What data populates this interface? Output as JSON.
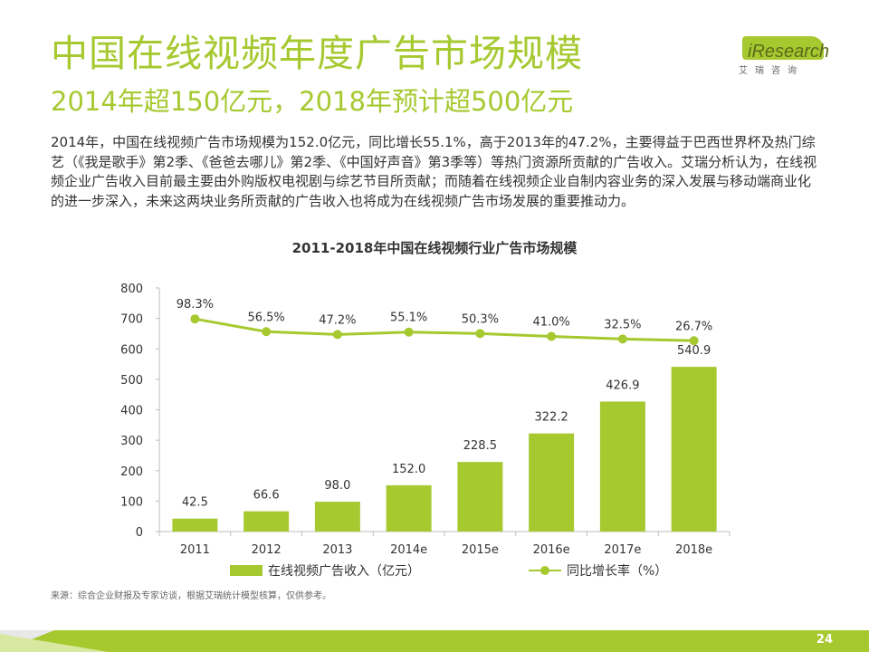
{
  "header": {
    "title": "中国在线视频年度广告市场规模",
    "subtitle": "2014年超150亿元，2018年预计超500亿元"
  },
  "logo": {
    "name": "iResearch",
    "sub": "艾瑞咨询"
  },
  "description": "2014年，中国在线视频广告市场规模为152.0亿元，同比增长55.1%，高于2013年的47.2%，主要得益于巴西世界杯及热门综艺（《我是歌手》第2季、《爸爸去哪儿》第2季、《中国好声音》第3季等）等热门资源所贡献的广告收入。艾瑞分析认为，在线视频企业广告收入目前最主要由外购版权电视剧与综艺节目所贡献；而随着在线视频企业自制内容业务的深入发展与移动端商业化的进一步深入，未来这两块业务所贡献的广告收入也将成为在线视频广告市场发展的重要推动力。",
  "chart_data": {
    "type": "bar",
    "title": "2011-2018年中国在线视频行业广告市场规模",
    "categories": [
      "2011",
      "2012",
      "2013",
      "2014e",
      "2015e",
      "2016e",
      "2017e",
      "2018e"
    ],
    "series": [
      {
        "name": "在线视频广告收入（亿元）",
        "type": "bar",
        "values": [
          42.5,
          66.6,
          98.0,
          152.0,
          228.5,
          322.2,
          426.9,
          540.9
        ],
        "labels": [
          "42.5",
          "66.6",
          "98.0",
          "152.0",
          "228.5",
          "322.2",
          "426.9",
          "540.9"
        ]
      },
      {
        "name": "同比增长率（%）",
        "type": "line",
        "values": [
          98.3,
          56.5,
          47.2,
          55.1,
          50.3,
          41.0,
          32.5,
          26.7
        ],
        "labels": [
          "98.3%",
          "56.5%",
          "47.2%",
          "55.1%",
          "50.3%",
          "41.0%",
          "32.5%",
          "26.7%"
        ]
      }
    ],
    "y_ticks": [
      "0",
      "100",
      "200",
      "300",
      "400",
      "500",
      "600",
      "700",
      "800"
    ],
    "ylim": [
      0,
      800
    ],
    "legend_position": "bottom",
    "grid": false,
    "colors": {
      "bar": "#a6c930",
      "line": "#a6c930"
    }
  },
  "source": "来源：综合企业财报及专家访谈，根据艾瑞统计模型核算，仅供参考。",
  "page_number": "24"
}
